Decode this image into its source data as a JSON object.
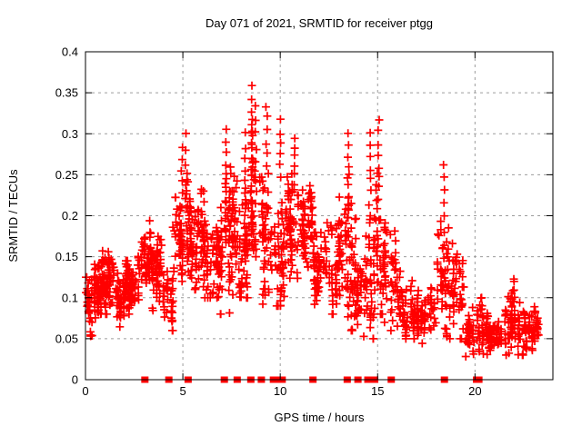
{
  "chart_data": {
    "type": "scatter",
    "title": "Day 071 of 2021, SRMTID for receiver ptgg",
    "xlabel": "GPS time / hours",
    "ylabel": "SRMTID / TECUs",
    "xlim": [
      0,
      24
    ],
    "ylim": [
      0,
      0.4
    ],
    "xticks": [
      0,
      5,
      10,
      15,
      20
    ],
    "yticks": [
      0,
      0.05,
      0.1,
      0.15,
      0.2,
      0.25,
      0.3,
      0.35,
      0.4
    ],
    "grid": true,
    "legend": "none",
    "series_name": "SRMTID",
    "marker": {
      "symbol": "plus",
      "size": 9,
      "stroke_width": 1.7
    },
    "colors": {
      "marker": "#ff0000",
      "grid": "#9c9c9c",
      "axis": "#000000",
      "text": "#000000",
      "background": "#ffffff"
    },
    "density_bins_note": "Each bin = [hour_start, hour_end, value_min, value_max, value_center, point_count], read from plot density",
    "density_bins": [
      [
        0.0,
        0.3,
        0.05,
        0.125,
        0.09,
        30
      ],
      [
        0.3,
        0.8,
        0.07,
        0.145,
        0.105,
        55
      ],
      [
        0.8,
        1.5,
        0.08,
        0.17,
        0.115,
        80
      ],
      [
        1.5,
        2.2,
        0.055,
        0.145,
        0.105,
        60
      ],
      [
        2.2,
        2.8,
        0.08,
        0.155,
        0.115,
        50
      ],
      [
        2.8,
        3.4,
        0.1,
        0.2,
        0.145,
        55
      ],
      [
        3.4,
        4.0,
        0.08,
        0.185,
        0.13,
        50
      ],
      [
        4.0,
        4.5,
        0.06,
        0.155,
        0.105,
        35
      ],
      [
        4.5,
        5.0,
        0.12,
        0.265,
        0.17,
        50
      ],
      [
        5.0,
        5.4,
        0.13,
        0.285,
        0.185,
        35
      ],
      [
        5.4,
        6.0,
        0.11,
        0.25,
        0.165,
        50
      ],
      [
        6.0,
        6.6,
        0.1,
        0.275,
        0.165,
        50
      ],
      [
        6.6,
        7.1,
        0.08,
        0.25,
        0.155,
        45
      ],
      [
        7.1,
        7.5,
        0.07,
        0.29,
        0.165,
        40
      ],
      [
        7.5,
        8.1,
        0.05,
        0.27,
        0.15,
        50
      ],
      [
        8.1,
        8.5,
        0.1,
        0.3,
        0.18,
        40
      ],
      [
        8.5,
        8.9,
        0.1,
        0.345,
        0.195,
        45
      ],
      [
        8.9,
        9.4,
        0.08,
        0.32,
        0.17,
        45
      ],
      [
        9.4,
        10.2,
        0.09,
        0.26,
        0.16,
        60
      ],
      [
        10.2,
        11.0,
        0.12,
        0.265,
        0.185,
        65
      ],
      [
        11.0,
        11.7,
        0.13,
        0.255,
        0.195,
        65
      ],
      [
        11.7,
        12.4,
        0.08,
        0.2,
        0.14,
        55
      ],
      [
        12.4,
        13.2,
        0.08,
        0.235,
        0.15,
        60
      ],
      [
        13.2,
        13.7,
        0.06,
        0.28,
        0.15,
        45
      ],
      [
        13.7,
        14.3,
        0.05,
        0.21,
        0.12,
        45
      ],
      [
        14.3,
        14.8,
        0.05,
        0.26,
        0.12,
        40
      ],
      [
        14.8,
        15.3,
        0.08,
        0.3,
        0.16,
        40
      ],
      [
        15.3,
        16.0,
        0.06,
        0.24,
        0.12,
        50
      ],
      [
        16.0,
        17.0,
        0.05,
        0.14,
        0.09,
        65
      ],
      [
        17.0,
        18.0,
        0.04,
        0.125,
        0.08,
        65
      ],
      [
        18.0,
        18.6,
        0.05,
        0.24,
        0.125,
        40
      ],
      [
        18.6,
        19.4,
        0.05,
        0.195,
        0.11,
        55
      ],
      [
        19.4,
        20.5,
        0.02,
        0.1,
        0.06,
        65
      ],
      [
        20.5,
        21.5,
        0.03,
        0.095,
        0.055,
        70
      ],
      [
        21.5,
        22.5,
        0.03,
        0.125,
        0.07,
        75
      ],
      [
        22.5,
        23.3,
        0.035,
        0.09,
        0.06,
        60
      ]
    ],
    "peaks_note": "Notable vertical spike columns = [hour, value_top, value_bottom, point_count]",
    "peaks": [
      [
        4.95,
        0.285,
        0.21,
        6
      ],
      [
        5.15,
        0.3,
        0.22,
        5
      ],
      [
        7.2,
        0.305,
        0.22,
        7
      ],
      [
        8.2,
        0.3,
        0.22,
        6
      ],
      [
        8.55,
        0.36,
        0.25,
        8
      ],
      [
        8.75,
        0.335,
        0.23,
        7
      ],
      [
        9.3,
        0.335,
        0.26,
        6
      ],
      [
        10.0,
        0.315,
        0.25,
        6
      ],
      [
        10.75,
        0.295,
        0.24,
        6
      ],
      [
        13.5,
        0.3,
        0.21,
        8
      ],
      [
        14.65,
        0.3,
        0.23,
        6
      ],
      [
        15.05,
        0.315,
        0.22,
        8
      ],
      [
        18.4,
        0.265,
        0.13,
        9
      ],
      [
        22.0,
        0.125,
        0.085,
        6
      ]
    ],
    "bottom_markers": {
      "symbol": "filled-square",
      "color": "#ff0000",
      "y_value": 0,
      "size": 8,
      "hours": [
        3.05,
        4.28,
        5.27,
        7.13,
        7.79,
        8.49,
        9.03,
        9.65,
        9.8,
        9.95,
        10.1,
        11.68,
        13.44,
        13.99,
        14.5,
        14.62,
        14.75,
        14.85,
        15.7,
        18.43,
        20.08,
        20.2
      ]
    }
  }
}
